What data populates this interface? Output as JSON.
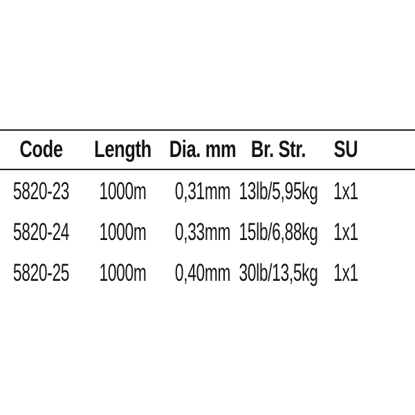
{
  "colors": {
    "background": "#ffffff",
    "text": "#151515",
    "rule": "#1c1c1c"
  },
  "table": {
    "columns": [
      {
        "key": "code",
        "label": "Code"
      },
      {
        "key": "length",
        "label": "Length"
      },
      {
        "key": "dia",
        "label": "Dia. mm"
      },
      {
        "key": "br_str",
        "label": "Br. Str."
      },
      {
        "key": "su",
        "label": "SU"
      }
    ],
    "rows": [
      {
        "code": "5820-23",
        "length": "1000m",
        "dia": "0,31mm",
        "br_str": "13lb/5,95kg",
        "su": "1x1"
      },
      {
        "code": "5820-24",
        "length": "1000m",
        "dia": "0,33mm",
        "br_str": "15lb/6,88kg",
        "su": "1x1"
      },
      {
        "code": "5820-25",
        "length": "1000m",
        "dia": "0,40mm",
        "br_str": "30lb/13,5kg",
        "su": "1x1"
      }
    ]
  }
}
